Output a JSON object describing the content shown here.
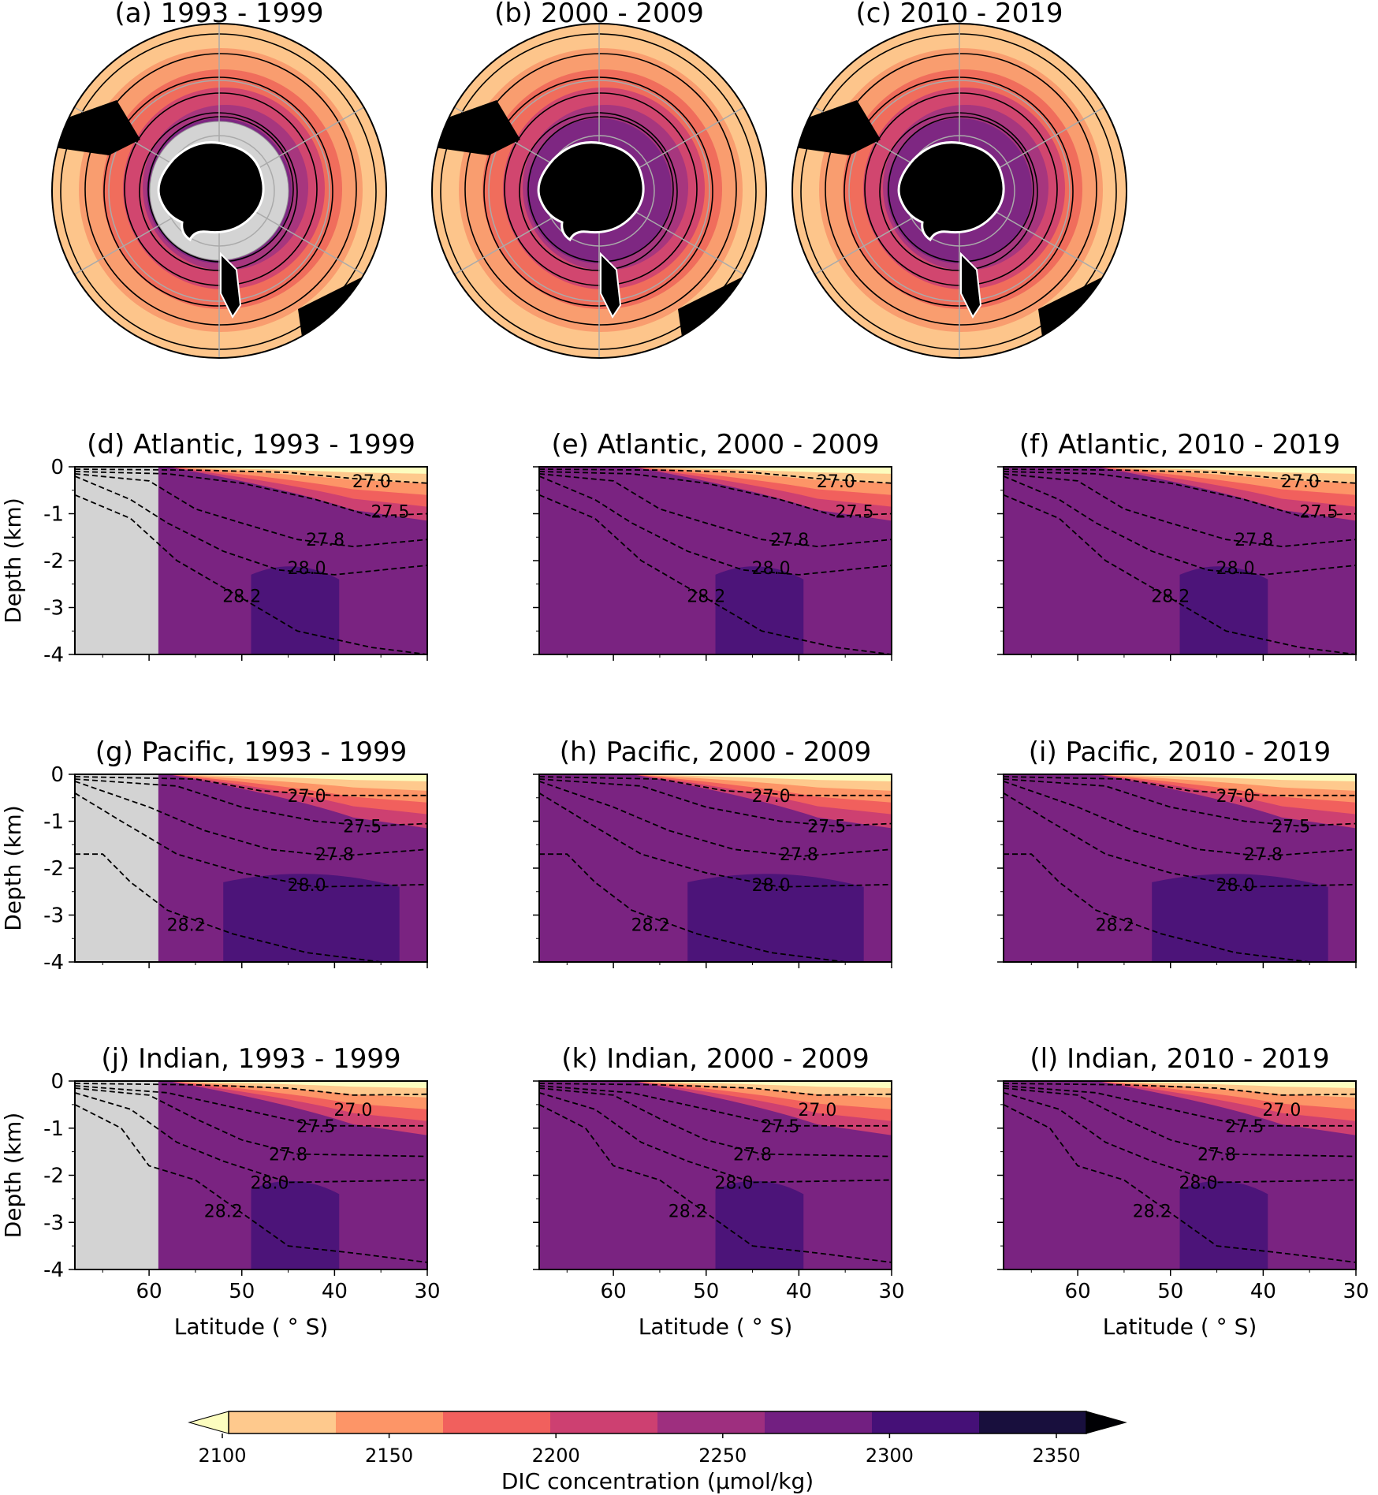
{
  "chart_data": {
    "type": "heatmap",
    "map_panels": [
      {
        "title": "(a) 1993 - 1999",
        "masked_polar_cap": true
      },
      {
        "title": "(b) 2000 - 2009",
        "masked_polar_cap": false
      },
      {
        "title": "(c) 2010 - 2019",
        "masked_polar_cap": false
      }
    ],
    "map_zone_colors": [
      "#a7367e",
      "#d1466f",
      "#f06d5c",
      "#f99d6f",
      "#fdc58b"
    ],
    "section_panels": [
      {
        "title": "(d) Atlantic, 1993 - 1999",
        "basin": "Atlantic",
        "masked_south": true
      },
      {
        "title": "(e) Atlantic, 2000 - 2009",
        "basin": "Atlantic",
        "masked_south": false
      },
      {
        "title": "(f) Atlantic, 2010 - 2019",
        "basin": "Atlantic",
        "masked_south": false
      },
      {
        "title": "(g) Pacific, 1993 - 1999",
        "basin": "Pacific",
        "masked_south": true
      },
      {
        "title": "(h) Pacific, 2000 - 2009",
        "basin": "Pacific",
        "masked_south": false
      },
      {
        "title": "(i) Pacific, 2010 - 2019",
        "basin": "Pacific",
        "masked_south": false
      },
      {
        "title": "(j) Indian, 1993 - 1999",
        "basin": "Indian",
        "masked_south": true
      },
      {
        "title": "(k) Indian, 2000 - 2009",
        "basin": "Indian",
        "masked_south": false
      },
      {
        "title": "(l) Indian, 2010 - 2019",
        "basin": "Indian",
        "masked_south": false
      }
    ],
    "ylabel": "Depth (km)",
    "xlabel": "Latitude ($^\\circ$S)",
    "xlabel_display": "Latitude ( ° S)",
    "xlim": [
      68,
      30
    ],
    "ylim": [
      -4,
      0
    ],
    "xticks": [
      60,
      50,
      40,
      30
    ],
    "yticks": [
      0,
      -1,
      -2,
      -3,
      -4
    ],
    "mask_edge_latitude": 59,
    "isopycnals": {
      "Atlantic": [
        {
          "label": "27.0",
          "points": [
            [
              68,
              -0.05
            ],
            [
              55,
              -0.07
            ],
            [
              45,
              -0.12
            ],
            [
              38,
              -0.25
            ],
            [
              30,
              -0.35
            ]
          ],
          "label_at": [
            36,
            -0.3
          ]
        },
        {
          "label": "27.5",
          "points": [
            [
              68,
              -0.1
            ],
            [
              58,
              -0.15
            ],
            [
              50,
              -0.35
            ],
            [
              42,
              -0.7
            ],
            [
              36,
              -1.05
            ],
            [
              30,
              -1.0
            ]
          ],
          "label_at": [
            34,
            -0.95
          ]
        },
        {
          "label": "27.8",
          "points": [
            [
              68,
              -0.15
            ],
            [
              60,
              -0.3
            ],
            [
              55,
              -0.9
            ],
            [
              50,
              -1.2
            ],
            [
              44,
              -1.55
            ],
            [
              38,
              -1.7
            ],
            [
              30,
              -1.55
            ]
          ],
          "label_at": [
            41,
            -1.55
          ]
        },
        {
          "label": "28.0",
          "points": [
            [
              68,
              -0.2
            ],
            [
              62,
              -0.7
            ],
            [
              58,
              -1.2
            ],
            [
              52,
              -1.8
            ],
            [
              46,
              -2.2
            ],
            [
              40,
              -2.3
            ],
            [
              30,
              -2.1
            ]
          ],
          "label_at": [
            43,
            -2.15
          ]
        },
        {
          "label": "28.2",
          "points": [
            [
              68,
              -0.6
            ],
            [
              62,
              -1.1
            ],
            [
              57,
              -2.0
            ],
            [
              50,
              -2.8
            ],
            [
              44,
              -3.5
            ],
            [
              36,
              -3.85
            ],
            [
              30,
              -4.0
            ]
          ],
          "label_at": [
            50,
            -2.75
          ]
        }
      ],
      "Pacific": [
        {
          "label": "27.0",
          "points": [
            [
              68,
              -0.05
            ],
            [
              55,
              -0.1
            ],
            [
              48,
              -0.35
            ],
            [
              40,
              -0.45
            ],
            [
              30,
              -0.45
            ]
          ],
          "label_at": [
            43,
            -0.45
          ]
        },
        {
          "label": "27.5",
          "points": [
            [
              68,
              -0.1
            ],
            [
              57,
              -0.25
            ],
            [
              50,
              -0.7
            ],
            [
              42,
              -1.0
            ],
            [
              36,
              -1.1
            ],
            [
              30,
              -1.05
            ]
          ],
          "label_at": [
            37,
            -1.1
          ]
        },
        {
          "label": "27.8",
          "points": [
            [
              68,
              -0.15
            ],
            [
              60,
              -0.7
            ],
            [
              54,
              -1.2
            ],
            [
              47,
              -1.6
            ],
            [
              40,
              -1.75
            ],
            [
              30,
              -1.6
            ]
          ],
          "label_at": [
            40,
            -1.7
          ]
        },
        {
          "label": "28.0",
          "points": [
            [
              68,
              -0.4
            ],
            [
              63,
              -1.0
            ],
            [
              57,
              -1.7
            ],
            [
              50,
              -2.1
            ],
            [
              42,
              -2.4
            ],
            [
              30,
              -2.35
            ]
          ],
          "label_at": [
            43,
            -2.35
          ]
        },
        {
          "label": "28.2",
          "points": [
            [
              68,
              -1.7
            ],
            [
              65,
              -1.7
            ],
            [
              62,
              -2.3
            ],
            [
              58,
              -2.9
            ],
            [
              51,
              -3.4
            ],
            [
              43,
              -3.8
            ],
            [
              35,
              -4.0
            ]
          ],
          "label_at": [
            56,
            -3.2
          ]
        }
      ],
      "Indian": [
        {
          "label": "27.0",
          "points": [
            [
              68,
              -0.05
            ],
            [
              55,
              -0.08
            ],
            [
              45,
              -0.15
            ],
            [
              38,
              -0.3
            ],
            [
              30,
              -0.28
            ]
          ],
          "label_at": [
            38,
            -0.6
          ]
        },
        {
          "label": "27.5",
          "points": [
            [
              68,
              -0.1
            ],
            [
              58,
              -0.25
            ],
            [
              50,
              -0.6
            ],
            [
              42,
              -0.95
            ],
            [
              30,
              -0.95
            ]
          ],
          "label_at": [
            42,
            -0.95
          ]
        },
        {
          "label": "27.8",
          "points": [
            [
              68,
              -0.15
            ],
            [
              60,
              -0.3
            ],
            [
              55,
              -0.8
            ],
            [
              50,
              -1.25
            ],
            [
              44,
              -1.55
            ],
            [
              30,
              -1.6
            ]
          ],
          "label_at": [
            45,
            -1.55
          ]
        },
        {
          "label": "28.0",
          "points": [
            [
              68,
              -0.25
            ],
            [
              62,
              -0.6
            ],
            [
              57,
              -1.3
            ],
            [
              52,
              -1.7
            ],
            [
              45,
              -2.15
            ],
            [
              30,
              -2.1
            ]
          ],
          "label_at": [
            47,
            -2.15
          ]
        },
        {
          "label": "28.2",
          "points": [
            [
              68,
              -0.5
            ],
            [
              63,
              -1.0
            ],
            [
              60,
              -1.8
            ],
            [
              55,
              -2.1
            ],
            [
              50,
              -2.8
            ],
            [
              45,
              -3.5
            ],
            [
              38,
              -3.65
            ],
            [
              30,
              -3.85
            ]
          ],
          "label_at": [
            52,
            -2.75
          ]
        }
      ]
    },
    "colorbar": {
      "label": "DIC concentration ($\\mu$mol/$kg$)",
      "label_display": "DIC concentration (μmol/kg)",
      "ticks": [
        2100,
        2150,
        2200,
        2250,
        2300,
        2350
      ],
      "levels": [
        2100,
        2125,
        2150,
        2175,
        2200,
        2225,
        2250,
        2275,
        2300,
        2325,
        2350
      ],
      "colors": [
        "#fcfdbf",
        "#fec98d",
        "#fd9567",
        "#f1605d",
        "#cd4071",
        "#9e2f7f",
        "#721f81",
        "#451077",
        "#180f3d",
        "#000004"
      ],
      "extend": "both"
    }
  }
}
